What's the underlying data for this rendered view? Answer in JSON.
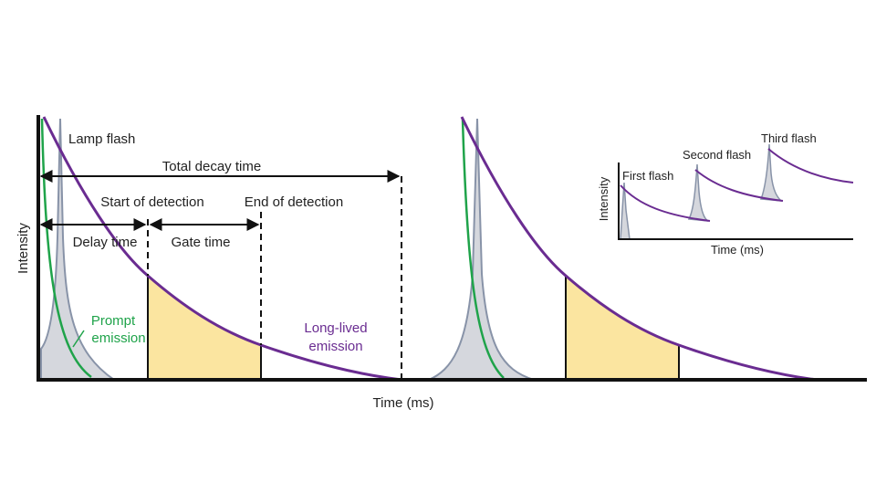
{
  "main": {
    "y_axis_label": "Intensity",
    "x_axis_label": "Time (ms)",
    "lamp_flash": "Lamp flash",
    "total_decay_time": "Total decay time",
    "start_of_detection": "Start of detection",
    "end_of_detection": "End of detection",
    "delay_time": "Delay time",
    "gate_time": "Gate time",
    "prompt_emission": [
      "Prompt",
      "emission"
    ],
    "long_lived_emission": [
      "Long-lived",
      "emission"
    ]
  },
  "inset": {
    "y_axis_label": "Intensity",
    "x_axis_label": "Time (ms)",
    "first_flash": "First flash",
    "second_flash": "Second flash",
    "third_flash": "Third flash"
  }
}
